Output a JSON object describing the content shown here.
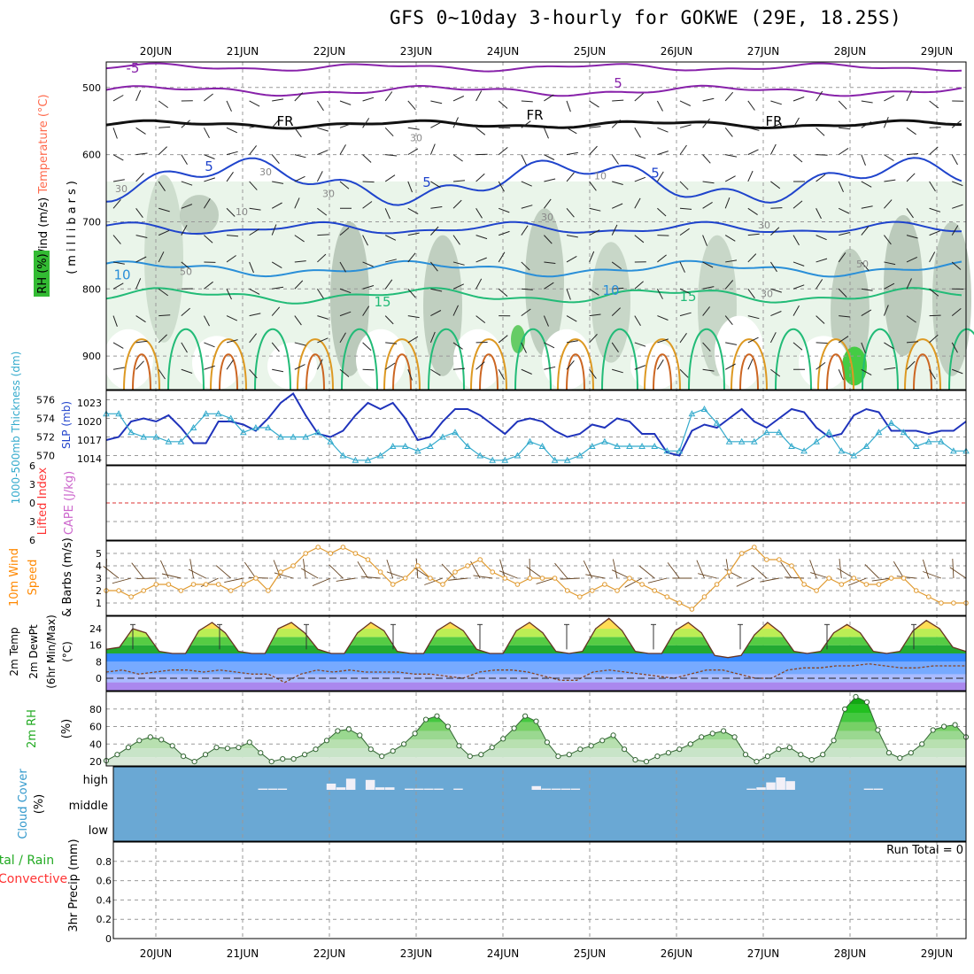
{
  "title": "GFS 0~10day 3-hourly for GOKWE (29E, 18.25S)",
  "dates": [
    "20JUN",
    "21JUN",
    "22JUN",
    "23JUN",
    "24JUN",
    "25JUN",
    "26JUN",
    "27JUN",
    "28JUN",
    "29JUN"
  ],
  "run_total": "Run Total = 0",
  "panels": {
    "upper": {
      "labels": [
        {
          "text": "Wind (m/s)",
          "color": "#000000"
        },
        {
          "text": "Temperature (°C)",
          "color": "#ff6a4d"
        },
        {
          "text": "RH (%)",
          "color": "#000000"
        },
        {
          "text": "(millibars)",
          "color": "#000000"
        }
      ],
      "y_ticks": [
        "500",
        "600",
        "700",
        "800",
        "900"
      ]
    },
    "slp": {
      "labels": [
        {
          "text": "1000-500mb Thickness (dm)",
          "color": "#33aacc"
        },
        {
          "text": "SLP (mb)",
          "color": "#2244cc"
        }
      ],
      "left_ticks": [
        "576",
        "574",
        "572",
        "570"
      ],
      "right_ticks": [
        "1023",
        "1020",
        "1017",
        "1014"
      ]
    },
    "cape": {
      "labels": [
        {
          "text": "Lifted Index",
          "color": "#ff3333"
        },
        {
          "text": "CAPE (J/kg)",
          "color": "#cc66cc"
        }
      ],
      "y_ticks": [
        "6",
        "3",
        "0",
        "3",
        "6"
      ]
    },
    "wind10": {
      "labels": [
        {
          "text": "10m Wind",
          "color": "#ff8800"
        },
        {
          "text": "Speed",
          "color": "#ff8800"
        },
        {
          "text": "& Barbs (m/s)",
          "color": "#000000"
        }
      ],
      "y_ticks": [
        "5",
        "4",
        "3",
        "2",
        "1"
      ]
    },
    "temp": {
      "labels": [
        {
          "text": "2m Temp",
          "color": "#000000"
        },
        {
          "text": "2m DewPt",
          "color": "#000000"
        },
        {
          "text": "(6hr Min/Max)",
          "color": "#000000"
        },
        {
          "text": "(°C)",
          "color": "#000000"
        }
      ],
      "y_ticks": [
        "24",
        "16",
        "8",
        "0"
      ]
    },
    "rh": {
      "labels": [
        {
          "text": "2m RH",
          "color": "#22aa22"
        },
        {
          "text": "(%)",
          "color": "#000000"
        }
      ],
      "y_ticks": [
        "80",
        "60",
        "40",
        "20"
      ]
    },
    "cloud": {
      "labels": [
        {
          "text": "Cloud Cover",
          "color": "#3399cc"
        },
        {
          "text": "(%)",
          "color": "#000000"
        }
      ],
      "levels": [
        "high",
        "middle",
        "low"
      ]
    },
    "precip": {
      "labels": [
        {
          "text": "Total / Rain",
          "color": "#22aa22"
        },
        {
          "text": "Convective",
          "color": "#ff3333"
        },
        {
          "text": "3hr Precip (mm)",
          "color": "#000000"
        }
      ],
      "y_ticks": [
        "0.8",
        "0.6",
        "0.4",
        "0.2",
        "0"
      ]
    }
  },
  "contour_labels": {
    "temperature": [
      "-5",
      "5",
      "FR",
      "FR",
      "FR",
      "5",
      "5",
      "5",
      "10",
      "10",
      "15",
      "15"
    ],
    "rh": [
      "30",
      "30",
      "30",
      "10",
      "10",
      "30",
      "50",
      "30",
      "30",
      "50",
      "30"
    ]
  },
  "chart_data": [
    {
      "type": "line",
      "title": "SLP (mb)",
      "series": [
        {
          "name": "SLP (mb)",
          "values": [
            1017,
            1017.5,
            1020,
            1020.5,
            1020,
            1021,
            1019,
            1016.5,
            1016.5,
            1020,
            1020,
            1019.5,
            1018.5,
            1020.5,
            1023,
            1024.5,
            1021,
            1018,
            1017.5,
            1018.5,
            1021,
            1023,
            1022,
            1023,
            1020.5,
            1017,
            1017.5,
            1020,
            1022,
            1022,
            1021,
            1019.5,
            1018,
            1020,
            1020.5,
            1020,
            1018.5,
            1017.5,
            1018,
            1019.5,
            1019,
            1020.5,
            1020,
            1018,
            1018,
            1015,
            1014.5,
            1018.5,
            1019.5,
            1019,
            1020.5,
            1022,
            1020,
            1019,
            1020.5,
            1022,
            1021.5,
            1019,
            1017.5,
            1018,
            1021,
            1022,
            1021.5,
            1018.5,
            1018.5,
            1018.5,
            1018,
            1018.5,
            1018.5,
            1020
          ]
        }
      ],
      "ylim": [
        1013,
        1025
      ]
    },
    {
      "type": "line",
      "title": "1000-500mb Thickness (dm)",
      "series": [
        {
          "name": "1000-500mb Thickness (dm)",
          "values": [
            574.5,
            574.5,
            572.5,
            572,
            572,
            571.5,
            571.5,
            573,
            574.5,
            574.5,
            574,
            572.5,
            573,
            573,
            572,
            572,
            572,
            572.5,
            571.5,
            570,
            569.5,
            569.5,
            570,
            571,
            571,
            570.5,
            571,
            572,
            572.5,
            571,
            570,
            569.5,
            569.5,
            570,
            571.5,
            571,
            569.5,
            569.5,
            570,
            571,
            571.5,
            571,
            571,
            571,
            571,
            570.5,
            570.5,
            574.5,
            575,
            573.5,
            571.5,
            571.5,
            571.5,
            572.5,
            572.5,
            571,
            570.5,
            571.5,
            572.5,
            570.5,
            570,
            571,
            572.5,
            573.5,
            572.5,
            571,
            571.5,
            571.5,
            570.5,
            570.5
          ]
        }
      ],
      "ylim": [
        569,
        577
      ]
    },
    {
      "type": "line",
      "title": "Lifted Index / CAPE",
      "series": [
        {
          "name": "Lifted Index",
          "values": [
            0,
            0,
            0,
            0,
            0,
            0,
            0,
            0,
            0,
            0
          ]
        }
      ],
      "ylim": [
        -6,
        6
      ]
    },
    {
      "type": "line",
      "title": "10m Wind Speed (m/s)",
      "series": [
        {
          "name": "10m Wind Speed",
          "values": [
            2,
            2,
            1.5,
            2,
            2.5,
            2.5,
            2,
            2.5,
            2.5,
            2.5,
            2,
            2.5,
            3,
            2,
            3.5,
            4,
            5,
            5.5,
            5,
            5.5,
            5,
            4.5,
            3.5,
            2.5,
            3,
            4,
            3,
            2.5,
            3.5,
            4,
            4.5,
            3.5,
            3,
            2.5,
            3,
            3,
            3,
            2,
            1.5,
            2,
            2.5,
            2,
            3,
            2.5,
            2,
            1.5,
            1,
            0.5,
            1.5,
            2.5,
            3.5,
            5,
            5.5,
            4.5,
            4.5,
            4,
            2.5,
            2,
            3,
            2.5,
            3,
            2.5,
            2.5,
            3,
            3,
            2,
            1.5,
            1,
            1,
            1
          ]
        }
      ],
      "ylim": [
        0,
        6
      ]
    },
    {
      "type": "area",
      "title": "2m Temp / 2m DewPt (°C)",
      "series": [
        {
          "name": "2m Temp",
          "values": [
            14,
            15,
            24,
            22,
            13,
            12,
            12,
            23,
            27,
            22,
            13,
            12,
            12,
            24,
            27,
            22,
            14,
            12,
            12,
            22,
            27,
            23,
            13,
            12,
            12,
            23,
            27,
            23,
            14,
            12,
            12,
            23,
            27,
            22,
            13,
            12,
            13,
            24,
            29,
            23,
            13,
            12,
            12,
            23,
            27,
            22,
            11,
            10,
            11,
            21,
            27,
            22,
            13,
            12,
            13,
            22,
            26,
            22,
            13,
            12,
            13,
            23,
            28,
            24,
            15,
            13
          ]
        },
        {
          "name": "2m DewPt",
          "values": [
            3,
            4,
            2,
            3,
            4,
            4,
            3,
            4,
            3,
            2,
            2,
            -2,
            2,
            4,
            3,
            4,
            3,
            3,
            3,
            2,
            2,
            1,
            0,
            3,
            4,
            4,
            3,
            1,
            -1,
            -1,
            3,
            4,
            3,
            2,
            1,
            0,
            2,
            4,
            4,
            2,
            0,
            0,
            4,
            5,
            5,
            6,
            6,
            7,
            6,
            5,
            5,
            6,
            6,
            6
          ]
        }
      ],
      "ylim": [
        -6,
        30
      ]
    },
    {
      "type": "area",
      "title": "2m RH (%)",
      "series": [
        {
          "name": "2m RH",
          "values": [
            21,
            28,
            36,
            44,
            48,
            45,
            38,
            26,
            20,
            28,
            36,
            35,
            36,
            42,
            30,
            20,
            23,
            23,
            28,
            34,
            44,
            55,
            57,
            50,
            34,
            26,
            32,
            40,
            52,
            68,
            72,
            60,
            38,
            26,
            28,
            36,
            46,
            58,
            72,
            66,
            42,
            26,
            28,
            34,
            38,
            44,
            50,
            34,
            22,
            20,
            26,
            30,
            34,
            40,
            48,
            52,
            55,
            48,
            28,
            20,
            26,
            34,
            36,
            28,
            22,
            28,
            44,
            80,
            94,
            88,
            56,
            30,
            24,
            30,
            40,
            56,
            60,
            62,
            48
          ]
        }
      ],
      "ylim": [
        15,
        100
      ]
    },
    {
      "type": "bar",
      "title": "Cloud Cover (%)",
      "series": [
        {
          "name": "high",
          "values": [
            0,
            0,
            0,
            0,
            0,
            0,
            0,
            0,
            0,
            0,
            0,
            0,
            0,
            0,
            0,
            0,
            5,
            5,
            5,
            0,
            0,
            0,
            0,
            25,
            10,
            45,
            0,
            40,
            10,
            10,
            0,
            5,
            5,
            5,
            5,
            0,
            5,
            0,
            0,
            0,
            0,
            0,
            0,
            0,
            15,
            5,
            5,
            5,
            5,
            0,
            0,
            0,
            0,
            0,
            0,
            0,
            0,
            0,
            0,
            0,
            0,
            0,
            0,
            0,
            0,
            0,
            5,
            10,
            30,
            50,
            35,
            0,
            0,
            0,
            0,
            0,
            0,
            0,
            5,
            5,
            0,
            0,
            0,
            0,
            0,
            0,
            0,
            0,
            0
          ]
        }
      ],
      "ylim": [
        0,
        100
      ]
    },
    {
      "type": "bar",
      "title": "3hr Precip (mm)",
      "series": [
        {
          "name": "Total / Rain",
          "values": [
            0,
            0,
            0,
            0,
            0,
            0,
            0,
            0,
            0,
            0
          ]
        }
      ],
      "ylim": [
        0,
        1
      ]
    }
  ]
}
